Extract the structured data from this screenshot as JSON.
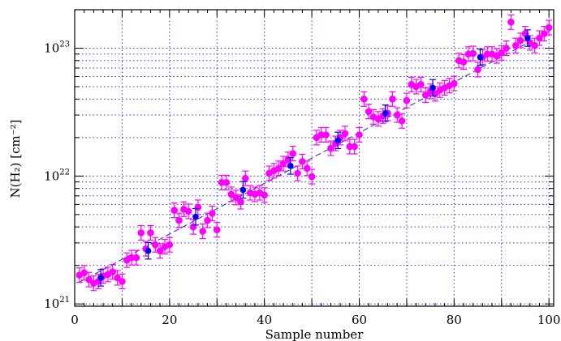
{
  "chart_data": {
    "type": "scatter",
    "title": "",
    "xlabel": "Sample number",
    "ylabel": "N(H₂)  [cm⁻²]",
    "xlim": [
      0,
      101
    ],
    "ylim": [
      9.6e+20,
      2e+23
    ],
    "y_scale": "log",
    "x_ticks": [
      0,
      20,
      40,
      60,
      80,
      100
    ],
    "y_tick_labels": [
      {
        "value": 1e+21,
        "base": "10",
        "exp": "21"
      },
      {
        "value": 1e+22,
        "base": "10",
        "exp": "22"
      },
      {
        "value": 1e+23,
        "base": "10",
        "exp": "23"
      }
    ],
    "grid": true,
    "colors": {
      "samples": "#ff00ff",
      "averages": "#0000ee",
      "fit": "#2222cc",
      "grid": "#3333dd"
    },
    "series": [
      {
        "marker": "circle",
        "color": "#ff00ff",
        "x": [
          1,
          2,
          3,
          4,
          5,
          6,
          7,
          8,
          9,
          10,
          11,
          12,
          13,
          14,
          15,
          16,
          17,
          18,
          19,
          20,
          21,
          22,
          23,
          24,
          25,
          26,
          27,
          28,
          29,
          30,
          31,
          32,
          33,
          34,
          35,
          36,
          37,
          38,
          39,
          40,
          41,
          42,
          43,
          44,
          45,
          46,
          47,
          48,
          49,
          50,
          51,
          52,
          53,
          54,
          55,
          56,
          57,
          58,
          59,
          60,
          61,
          62,
          63,
          64,
          65,
          66,
          67,
          68,
          69,
          70,
          71,
          72,
          73,
          74,
          75,
          76,
          77,
          78,
          79,
          80,
          81,
          82,
          83,
          84,
          85,
          86,
          87,
          88,
          89,
          90,
          91,
          92,
          93,
          94,
          95,
          96,
          97,
          98,
          99,
          100
        ],
        "y": [
          1.68e+21,
          1.75e+21,
          1.55e+21,
          1.45e+21,
          1.5e+21,
          1.65e+21,
          1.7e+21,
          1.78e+21,
          1.6e+21,
          1.5e+21,
          2.2e+21,
          2.3e+21,
          2.3e+21,
          3.6e+21,
          2.7e+21,
          3.6e+21,
          2.9e+21,
          2.6e+21,
          2.8e+21,
          2.9e+21,
          5.4e+21,
          4.5e+21,
          5.5e+21,
          5.3e+21,
          4e+21,
          5.7e+21,
          3.7e+21,
          4.5e+21,
          5.1e+21,
          3.8e+21,
          8.9e+21,
          8.9e+21,
          7.2e+21,
          6.8e+21,
          6.3e+21,
          9.6e+21,
          7.4e+21,
          7.2e+21,
          7.4e+21,
          7.1e+21,
          1.05e+22,
          1.1e+22,
          1.15e+22,
          1.25e+22,
          1.35e+22,
          1.5e+22,
          1.05e+22,
          1.3e+22,
          1.15e+22,
          9.9e+21,
          2e+22,
          2.1e+22,
          2.1e+22,
          1.65e+22,
          1.8e+22,
          2e+22,
          2.15e+22,
          1.7e+22,
          1.7e+22,
          2.1e+22,
          4e+22,
          3.2e+22,
          2.9e+22,
          2.8e+22,
          2.95e+22,
          3.1e+22,
          4e+22,
          3e+22,
          2.7e+22,
          3.9e+22,
          5.2e+22,
          5e+22,
          5.2e+22,
          4.3e+22,
          4.6e+22,
          4.4e+22,
          4.7e+22,
          4.9e+22,
          5.1e+22,
          5.3e+22,
          8e+22,
          7.8e+22,
          9e+22,
          9.1e+22,
          6.8e+22,
          8.5e+22,
          9e+22,
          9e+22,
          8.7e+22,
          9.2e+22,
          1e+23,
          1.6e+23,
          1.05e+23,
          1.15e+23,
          1.3e+23,
          1.1e+23,
          1.05e+23,
          1.2e+23,
          1.3e+23,
          1.45e+23
        ]
      },
      {
        "marker": "circle",
        "color": "#0000ee",
        "x": [
          5.5,
          15.5,
          25.5,
          35.5,
          45.5,
          55.5,
          65.5,
          75.5,
          85.5,
          95.5
        ],
        "y": [
          1.6e+21,
          2.6e+21,
          4.8e+21,
          7.8e+21,
          1.2e+22,
          1.9e+22,
          3.1e+22,
          4.9e+22,
          8.5e+22,
          1.2e+23
        ]
      },
      {
        "type": "line",
        "style": "dashed",
        "color": "#2222cc",
        "x": [
          1,
          100
        ],
        "y": [
          1.48e+21,
          1.35e+23
        ]
      }
    ]
  }
}
